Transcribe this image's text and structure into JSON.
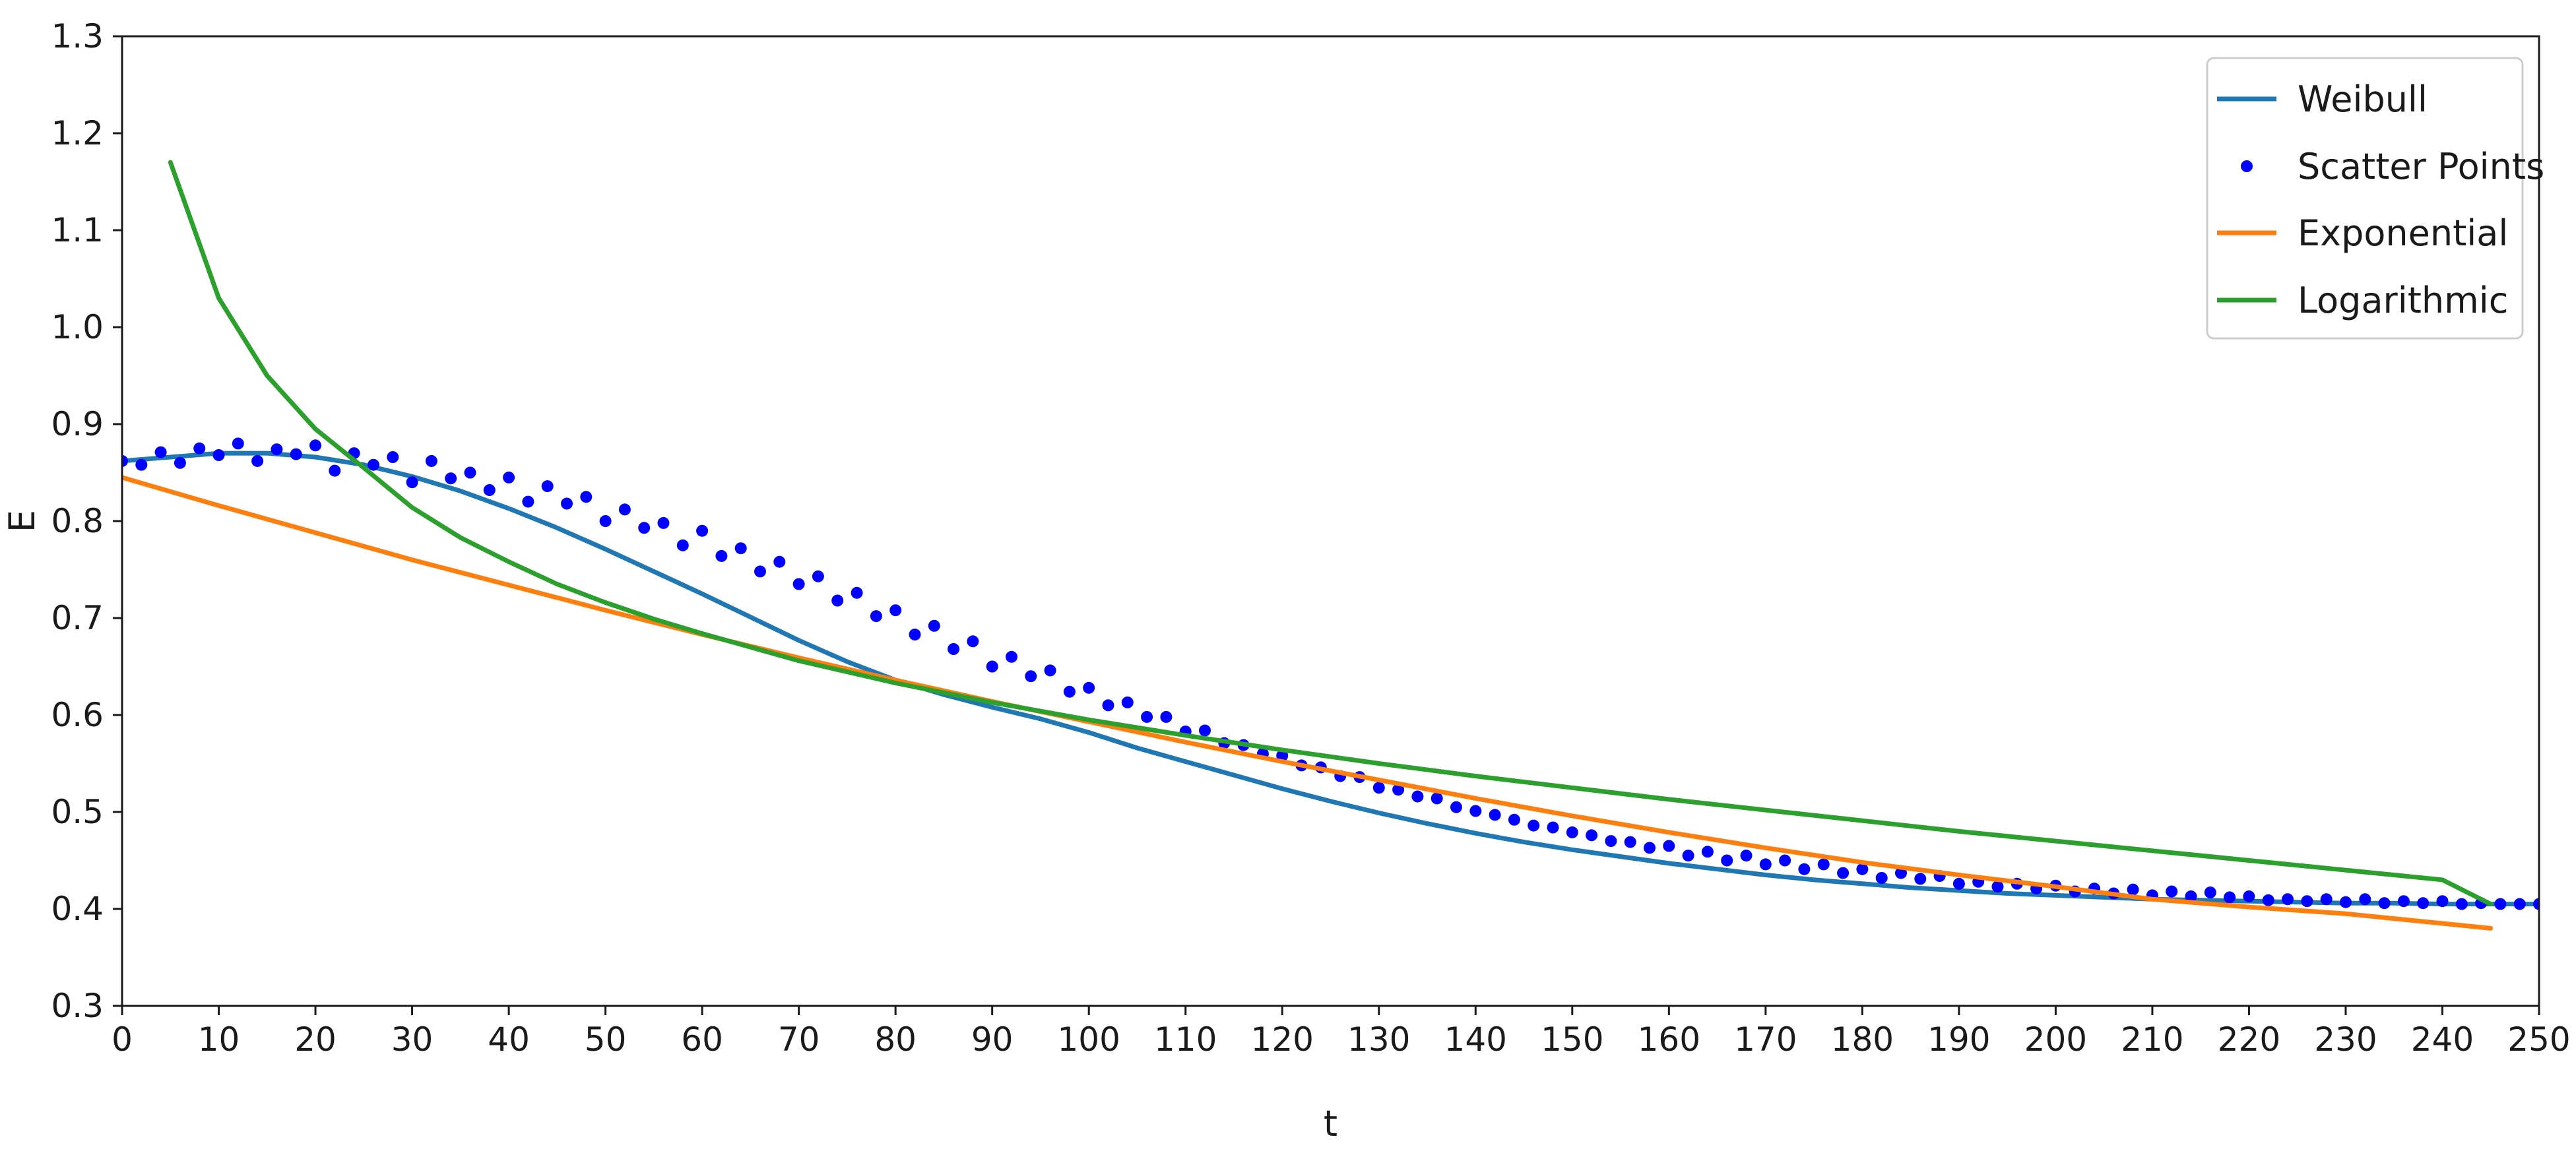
{
  "chart_data": {
    "type": "line",
    "title": "",
    "xlabel": "t",
    "ylabel": "E",
    "xlim": [
      0,
      250
    ],
    "ylim": [
      0.3,
      1.3
    ],
    "xticks": [
      0,
      10,
      20,
      30,
      40,
      50,
      60,
      70,
      80,
      90,
      100,
      110,
      120,
      130,
      140,
      150,
      160,
      170,
      180,
      190,
      200,
      210,
      220,
      230,
      240,
      250
    ],
    "yticks": [
      0.3,
      0.4,
      0.5,
      0.6,
      0.7,
      0.8,
      0.9,
      1.0,
      1.1,
      1.2,
      1.3
    ],
    "ytick_labels": [
      "0.3",
      "0.4",
      "0.5",
      "0.6",
      "0.7",
      "0.8",
      "0.9",
      "1.0",
      "1.1",
      "1.2",
      "1.3"
    ],
    "grid": false,
    "legend_position": "top-right",
    "legend": [
      "Weibull",
      "Scatter Points",
      "Exponential",
      "Logarithmic"
    ],
    "series": [
      {
        "name": "Weibull",
        "kind": "line",
        "color": "#1f77b4",
        "x": [
          0,
          5,
          10,
          15,
          20,
          25,
          30,
          35,
          40,
          45,
          50,
          55,
          60,
          65,
          70,
          75,
          80,
          85,
          90,
          95,
          100,
          105,
          110,
          115,
          120,
          125,
          130,
          135,
          140,
          145,
          150,
          155,
          160,
          165,
          170,
          175,
          180,
          185,
          190,
          195,
          200,
          205,
          210,
          215,
          220,
          225,
          230,
          235,
          240,
          245,
          250
        ],
        "y": [
          0.862,
          0.866,
          0.87,
          0.87,
          0.866,
          0.858,
          0.846,
          0.831,
          0.813,
          0.793,
          0.771,
          0.748,
          0.725,
          0.701,
          0.677,
          0.655,
          0.636,
          0.621,
          0.608,
          0.596,
          0.582,
          0.566,
          0.552,
          0.538,
          0.524,
          0.511,
          0.499,
          0.488,
          0.478,
          0.469,
          0.461,
          0.454,
          0.447,
          0.441,
          0.435,
          0.43,
          0.426,
          0.422,
          0.419,
          0.416,
          0.414,
          0.412,
          0.41,
          0.409,
          0.408,
          0.407,
          0.406,
          0.406,
          0.405,
          0.405,
          0.405
        ]
      },
      {
        "name": "Scatter Points",
        "kind": "scatter",
        "color": "#0000ff",
        "x": [
          0,
          2,
          4,
          6,
          8,
          10,
          12,
          14,
          16,
          18,
          20,
          22,
          24,
          26,
          28,
          30,
          32,
          34,
          36,
          38,
          40,
          42,
          44,
          46,
          48,
          50,
          52,
          54,
          56,
          58,
          60,
          62,
          64,
          66,
          68,
          70,
          72,
          74,
          76,
          78,
          80,
          82,
          84,
          86,
          88,
          90,
          92,
          94,
          96,
          98,
          100,
          102,
          104,
          106,
          108,
          110,
          112,
          114,
          116,
          118,
          120,
          122,
          124,
          126,
          128,
          130,
          132,
          134,
          136,
          138,
          140,
          142,
          144,
          146,
          148,
          150,
          152,
          154,
          156,
          158,
          160,
          162,
          164,
          166,
          168,
          170,
          172,
          174,
          176,
          178,
          180,
          182,
          184,
          186,
          188,
          190,
          192,
          194,
          196,
          198,
          200,
          202,
          204,
          206,
          208,
          210,
          212,
          214,
          216,
          218,
          220,
          222,
          224,
          226,
          228,
          230,
          232,
          234,
          236,
          238,
          240,
          242,
          244,
          246,
          248,
          250
        ],
        "y": [
          0.862,
          0.858,
          0.871,
          0.86,
          0.875,
          0.868,
          0.88,
          0.862,
          0.874,
          0.869,
          0.878,
          0.852,
          0.87,
          0.858,
          0.866,
          0.84,
          0.862,
          0.844,
          0.85,
          0.832,
          0.845,
          0.82,
          0.836,
          0.818,
          0.825,
          0.8,
          0.812,
          0.793,
          0.798,
          0.775,
          0.79,
          0.764,
          0.772,
          0.748,
          0.758,
          0.735,
          0.743,
          0.718,
          0.726,
          0.702,
          0.708,
          0.683,
          0.692,
          0.668,
          0.676,
          0.65,
          0.66,
          0.64,
          0.646,
          0.624,
          0.628,
          0.61,
          0.613,
          0.598,
          0.598,
          0.583,
          0.584,
          0.571,
          0.569,
          0.56,
          0.558,
          0.548,
          0.546,
          0.537,
          0.536,
          0.525,
          0.523,
          0.516,
          0.514,
          0.505,
          0.501,
          0.497,
          0.492,
          0.486,
          0.484,
          0.479,
          0.476,
          0.47,
          0.469,
          0.463,
          0.465,
          0.455,
          0.459,
          0.45,
          0.455,
          0.446,
          0.45,
          0.441,
          0.446,
          0.437,
          0.441,
          0.432,
          0.437,
          0.431,
          0.434,
          0.426,
          0.428,
          0.423,
          0.426,
          0.421,
          0.424,
          0.418,
          0.421,
          0.416,
          0.42,
          0.414,
          0.418,
          0.413,
          0.417,
          0.412,
          0.413,
          0.409,
          0.41,
          0.408,
          0.41,
          0.407,
          0.41,
          0.406,
          0.408,
          0.406,
          0.408,
          0.405,
          0.406,
          0.405,
          0.405,
          0.405
        ]
      },
      {
        "name": "Exponential",
        "kind": "line",
        "color": "#ff7f0e",
        "x": [
          0,
          10,
          20,
          30,
          40,
          50,
          60,
          70,
          80,
          90,
          100,
          110,
          120,
          130,
          140,
          150,
          160,
          170,
          180,
          190,
          200,
          210,
          220,
          230,
          240,
          245
        ],
        "y": [
          0.845,
          0.816,
          0.788,
          0.76,
          0.734,
          0.708,
          0.683,
          0.659,
          0.636,
          0.614,
          0.593,
          0.572,
          0.552,
          0.533,
          0.514,
          0.496,
          0.479,
          0.463,
          0.448,
          0.435,
          0.423,
          0.41,
          0.402,
          0.395,
          0.385,
          0.38
        ]
      },
      {
        "name": "Logarithmic",
        "kind": "line",
        "color": "#2ca02c",
        "x": [
          5,
          10,
          15,
          20,
          25,
          30,
          35,
          40,
          45,
          50,
          55,
          60,
          70,
          80,
          90,
          100,
          110,
          120,
          130,
          140,
          150,
          160,
          170,
          180,
          190,
          200,
          210,
          220,
          230,
          240,
          245
        ],
        "y": [
          1.17,
          1.03,
          0.95,
          0.895,
          0.855,
          0.814,
          0.783,
          0.758,
          0.735,
          0.716,
          0.699,
          0.684,
          0.656,
          0.633,
          0.613,
          0.595,
          0.579,
          0.564,
          0.55,
          0.537,
          0.525,
          0.513,
          0.502,
          0.491,
          0.48,
          0.47,
          0.46,
          0.45,
          0.44,
          0.43,
          0.405
        ]
      }
    ]
  }
}
